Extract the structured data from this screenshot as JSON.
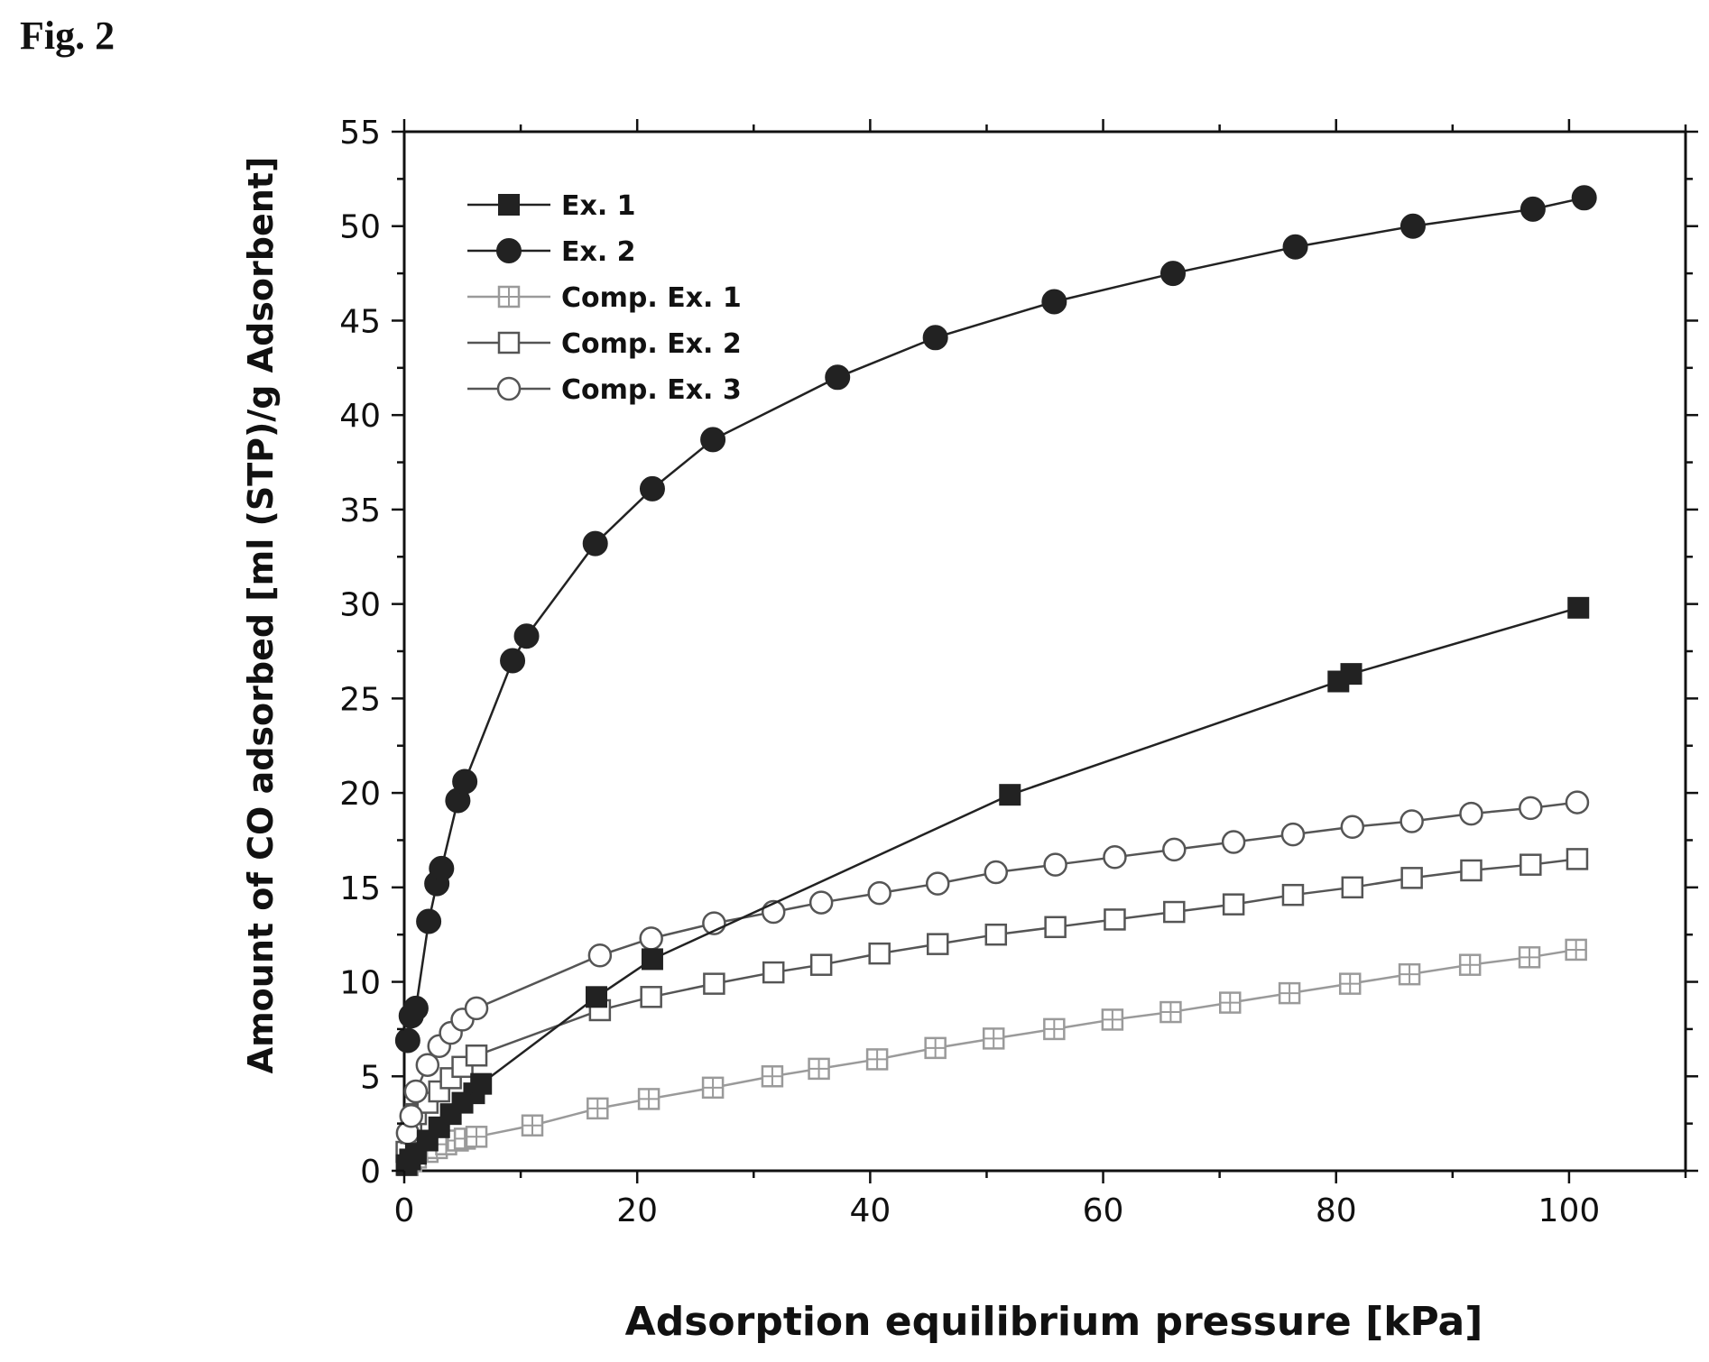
{
  "figure_label": "Fig. 2",
  "colors": {
    "ex1": "#222222",
    "ex2": "#222222",
    "comp1": "#9a9a9a",
    "comp2": "#555555",
    "comp3": "#555555"
  },
  "chart_data": {
    "type": "scatter",
    "title": "",
    "xlabel": "Adsorption equilibrium pressure [kPa]",
    "ylabel": "Amount of CO adsorbed [ml (STP)/g Adsorbent]",
    "xlim": [
      0,
      110
    ],
    "ylim": [
      0,
      55
    ],
    "xticks": [
      0,
      20,
      40,
      60,
      80,
      100
    ],
    "yticks": [
      0,
      5,
      10,
      15,
      20,
      25,
      30,
      35,
      40,
      45,
      50,
      55
    ],
    "grid": false,
    "legend_position": "top-left",
    "series": [
      {
        "name": "Ex. 1",
        "marker": "square-filled",
        "color_key": "ex1",
        "points": [
          [
            0.2,
            0.3
          ],
          [
            0.5,
            0.6
          ],
          [
            1.0,
            0.9
          ],
          [
            2.0,
            1.6
          ],
          [
            3.0,
            2.3
          ],
          [
            4.0,
            3.0
          ],
          [
            5.0,
            3.6
          ],
          [
            6.0,
            4.1
          ],
          [
            6.6,
            4.6
          ],
          [
            16.5,
            9.2
          ],
          [
            21.3,
            11.2
          ],
          [
            52.0,
            19.9
          ],
          [
            80.2,
            25.9
          ],
          [
            81.3,
            26.3
          ],
          [
            100.8,
            29.8
          ]
        ]
      },
      {
        "name": "Ex. 2",
        "marker": "circle-filled",
        "color_key": "ex2",
        "points": [
          [
            0.3,
            6.9
          ],
          [
            0.6,
            8.2
          ],
          [
            1.0,
            8.6
          ],
          [
            2.1,
            13.2
          ],
          [
            2.8,
            15.2
          ],
          [
            3.2,
            16.0
          ],
          [
            4.6,
            19.6
          ],
          [
            5.2,
            20.6
          ],
          [
            9.3,
            27.0
          ],
          [
            10.5,
            28.3
          ],
          [
            16.4,
            33.2
          ],
          [
            21.3,
            36.1
          ],
          [
            26.5,
            38.7
          ],
          [
            37.2,
            42.0
          ],
          [
            45.6,
            44.1
          ],
          [
            55.8,
            46.0
          ],
          [
            66.0,
            47.5
          ],
          [
            76.5,
            48.9
          ],
          [
            86.6,
            50.0
          ],
          [
            96.9,
            50.9
          ],
          [
            101.3,
            51.5
          ]
        ]
      },
      {
        "name": "Comp. Ex. 1",
        "marker": "square-crossed",
        "color_key": "comp1",
        "points": [
          [
            0.3,
            0.3
          ],
          [
            0.6,
            0.5
          ],
          [
            1.0,
            0.7
          ],
          [
            2.0,
            1.0
          ],
          [
            2.8,
            1.2
          ],
          [
            3.6,
            1.4
          ],
          [
            4.6,
            1.6
          ],
          [
            5.2,
            1.7
          ],
          [
            6.2,
            1.8
          ],
          [
            11.0,
            2.4
          ],
          [
            16.6,
            3.3
          ],
          [
            21.0,
            3.8
          ],
          [
            26.5,
            4.4
          ],
          [
            31.6,
            5.0
          ],
          [
            35.6,
            5.4
          ],
          [
            40.6,
            5.9
          ],
          [
            45.6,
            6.5
          ],
          [
            50.6,
            7.0
          ],
          [
            55.8,
            7.5
          ],
          [
            60.8,
            8.0
          ],
          [
            65.8,
            8.4
          ],
          [
            70.9,
            8.9
          ],
          [
            76.0,
            9.4
          ],
          [
            81.2,
            9.9
          ],
          [
            86.3,
            10.4
          ],
          [
            91.5,
            10.9
          ],
          [
            96.6,
            11.3
          ],
          [
            100.6,
            11.7
          ]
        ]
      },
      {
        "name": "Comp. Ex. 2",
        "marker": "square-open",
        "color_key": "comp2",
        "points": [
          [
            0.2,
            1.0
          ],
          [
            0.6,
            2.0
          ],
          [
            1.0,
            3.0
          ],
          [
            2.0,
            3.6
          ],
          [
            3.0,
            4.2
          ],
          [
            4.0,
            4.9
          ],
          [
            5.0,
            5.5
          ],
          [
            6.2,
            6.1
          ],
          [
            16.8,
            8.5
          ],
          [
            21.2,
            9.2
          ],
          [
            26.6,
            9.9
          ],
          [
            31.7,
            10.5
          ],
          [
            35.8,
            10.9
          ],
          [
            40.8,
            11.5
          ],
          [
            45.8,
            12.0
          ],
          [
            50.8,
            12.5
          ],
          [
            55.9,
            12.9
          ],
          [
            61.0,
            13.3
          ],
          [
            66.1,
            13.7
          ],
          [
            71.2,
            14.1
          ],
          [
            76.3,
            14.6
          ],
          [
            81.4,
            15.0
          ],
          [
            86.5,
            15.5
          ],
          [
            91.6,
            15.9
          ],
          [
            96.7,
            16.2
          ],
          [
            100.7,
            16.5
          ]
        ]
      },
      {
        "name": "Comp. Ex. 3",
        "marker": "circle-open",
        "color_key": "comp3",
        "points": [
          [
            0.3,
            2.0
          ],
          [
            0.6,
            2.9
          ],
          [
            1.0,
            4.2
          ],
          [
            2.0,
            5.6
          ],
          [
            3.0,
            6.6
          ],
          [
            4.0,
            7.3
          ],
          [
            5.0,
            8.0
          ],
          [
            6.2,
            8.6
          ],
          [
            16.8,
            11.4
          ],
          [
            21.2,
            12.3
          ],
          [
            26.6,
            13.1
          ],
          [
            31.7,
            13.7
          ],
          [
            35.8,
            14.2
          ],
          [
            40.8,
            14.7
          ],
          [
            45.8,
            15.2
          ],
          [
            50.8,
            15.8
          ],
          [
            55.9,
            16.2
          ],
          [
            61.0,
            16.6
          ],
          [
            66.1,
            17.0
          ],
          [
            71.2,
            17.4
          ],
          [
            76.3,
            17.8
          ],
          [
            81.4,
            18.2
          ],
          [
            86.5,
            18.5
          ],
          [
            91.6,
            18.9
          ],
          [
            96.7,
            19.2
          ],
          [
            100.7,
            19.5
          ]
        ]
      }
    ]
  }
}
